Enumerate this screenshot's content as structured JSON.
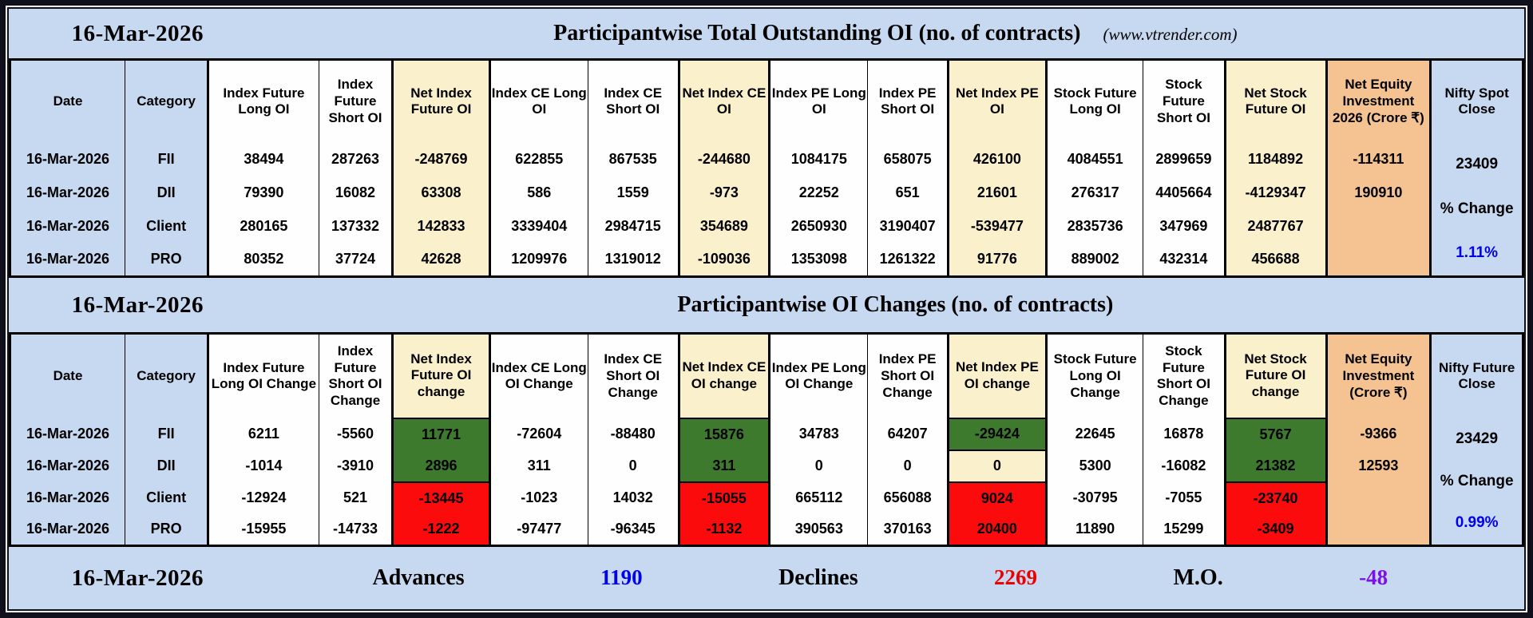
{
  "palette": {
    "frame": "#10101c",
    "band_blue": "#c6d9f1",
    "cell_white": "#fefefe",
    "cream": "#fbf0cc",
    "orange": "#f5c292",
    "green_bg": "#3e7a2e",
    "red_bg": "#fb0b0b",
    "red_text": "#ee0000",
    "blue_text": "#0000ee",
    "purple_text": "#7d0fe8",
    "white_text": "#fffef0",
    "black_text": "#000000"
  },
  "top_band": {
    "date": "16-Mar-2026",
    "title": "Participantwise Total Outstanding OI (no. of contracts)",
    "site": "(www.vtrender.com)"
  },
  "table1": {
    "columns": [
      {
        "label": "Date",
        "bg": "blue"
      },
      {
        "label": "Category",
        "bg": "blue"
      },
      {
        "label": "Index Future Long OI",
        "bg": "white"
      },
      {
        "label": "Index Future Short OI",
        "bg": "white"
      },
      {
        "label": "Net Index Future OI",
        "bg": "cream"
      },
      {
        "label": "Index CE Long OI",
        "bg": "white"
      },
      {
        "label": "Index CE Short OI",
        "bg": "white"
      },
      {
        "label": "Net Index CE OI",
        "bg": "cream"
      },
      {
        "label": "Index PE Long OI",
        "bg": "white"
      },
      {
        "label": "Index PE Short OI",
        "bg": "white"
      },
      {
        "label": "Net Index PE OI",
        "bg": "cream"
      },
      {
        "label": "Stock Future Long OI",
        "bg": "white"
      },
      {
        "label": "Stock Future Short OI",
        "bg": "white"
      },
      {
        "label": "Net Stock Future OI",
        "bg": "cream"
      },
      {
        "label": "Net Equity Investment 2026 (Crore ₹)",
        "bg": "orange"
      },
      {
        "label": "Nifty Spot Close",
        "bg": "blue"
      }
    ],
    "rows": [
      {
        "date": "16-Mar-2026",
        "category": "FII",
        "cells": [
          {
            "v": "38494"
          },
          {
            "v": "287263"
          },
          {
            "v": "-248769",
            "c": "r"
          },
          {
            "v": "622855"
          },
          {
            "v": "867535"
          },
          {
            "v": "-244680",
            "c": "r"
          },
          {
            "v": "1084175"
          },
          {
            "v": "658075"
          },
          {
            "v": "426100"
          },
          {
            "v": "4084551"
          },
          {
            "v": "2899659"
          },
          {
            "v": "1184892"
          },
          {
            "v": "-114311",
            "c": "r"
          }
        ]
      },
      {
        "date": "16-Mar-2026",
        "category": "DII",
        "cells": [
          {
            "v": "79390"
          },
          {
            "v": "16082"
          },
          {
            "v": "63308"
          },
          {
            "v": "586"
          },
          {
            "v": "1559"
          },
          {
            "v": "-973",
            "c": "r"
          },
          {
            "v": "22252"
          },
          {
            "v": "651"
          },
          {
            "v": "21601"
          },
          {
            "v": "276317"
          },
          {
            "v": "4405664"
          },
          {
            "v": "-4129347",
            "c": "r"
          },
          {
            "v": "190910",
            "c": "b"
          }
        ]
      },
      {
        "date": "16-Mar-2026",
        "category": "Client",
        "cells": [
          {
            "v": "280165"
          },
          {
            "v": "137332"
          },
          {
            "v": "142833"
          },
          {
            "v": "3339404"
          },
          {
            "v": "2984715"
          },
          {
            "v": "354689"
          },
          {
            "v": "2650930"
          },
          {
            "v": "3190407"
          },
          {
            "v": "-539477",
            "c": "r"
          },
          {
            "v": "2835736"
          },
          {
            "v": "347969"
          },
          {
            "v": "2487767"
          },
          {
            "v": ""
          }
        ]
      },
      {
        "date": "16-Mar-2026",
        "category": "PRO",
        "cells": [
          {
            "v": "80352"
          },
          {
            "v": "37724"
          },
          {
            "v": "42628"
          },
          {
            "v": "1209976"
          },
          {
            "v": "1319012"
          },
          {
            "v": "-109036",
            "c": "r"
          },
          {
            "v": "1353098"
          },
          {
            "v": "1261322"
          },
          {
            "v": "91776"
          },
          {
            "v": "889002"
          },
          {
            "v": "432314"
          },
          {
            "v": "456688"
          },
          {
            "v": ""
          }
        ]
      }
    ],
    "spot": {
      "value": "23409",
      "pct_label": "% Change",
      "pct_value": "1.11%"
    }
  },
  "band2": {
    "date": "16-Mar-2026",
    "title": "Participantwise OI Changes (no. of contracts)"
  },
  "table2": {
    "columns": [
      {
        "label": "Date",
        "bg": "blue"
      },
      {
        "label": "Category",
        "bg": "blue"
      },
      {
        "label": "Index Future Long OI Change",
        "bg": "white"
      },
      {
        "label": "Index Future Short OI Change",
        "bg": "white"
      },
      {
        "label": "Net Index Future OI change",
        "bg": "cream"
      },
      {
        "label": "Index CE Long OI Change",
        "bg": "white"
      },
      {
        "label": "Index CE Short OI Change",
        "bg": "white"
      },
      {
        "label": "Net Index CE OI change",
        "bg": "cream"
      },
      {
        "label": "Index PE Long OI Change",
        "bg": "white"
      },
      {
        "label": "Index PE Short OI Change",
        "bg": "white"
      },
      {
        "label": "Net Index PE OI change",
        "bg": "cream"
      },
      {
        "label": "Stock Future Long OI Change",
        "bg": "white"
      },
      {
        "label": "Stock Future Short OI Change",
        "bg": "white"
      },
      {
        "label": "Net Stock Future OI change",
        "bg": "cream"
      },
      {
        "label": "Net Equity Investment (Crore ₹)",
        "bg": "orange"
      },
      {
        "label": "Nifty Future Close",
        "bg": "blue"
      }
    ],
    "rows": [
      {
        "date": "16-Mar-2026",
        "category": "FII",
        "cells": [
          {
            "v": "6211",
            "c": "b"
          },
          {
            "v": "-5560",
            "c": "r"
          },
          {
            "v": "11771",
            "c": "w",
            "bg": "green"
          },
          {
            "v": "-72604",
            "c": "r"
          },
          {
            "v": "-88480",
            "c": "r"
          },
          {
            "v": "15876",
            "c": "w",
            "bg": "green"
          },
          {
            "v": "34783",
            "c": "b"
          },
          {
            "v": "64207",
            "c": "b"
          },
          {
            "v": "-29424",
            "c": "w",
            "bg": "green"
          },
          {
            "v": "22645",
            "c": "b"
          },
          {
            "v": "16878",
            "c": "b"
          },
          {
            "v": "5767",
            "c": "w",
            "bg": "green"
          },
          {
            "v": "-9366",
            "c": "r"
          }
        ]
      },
      {
        "date": "16-Mar-2026",
        "category": "DII",
        "cells": [
          {
            "v": "-1014",
            "c": "r"
          },
          {
            "v": "-3910",
            "c": "r"
          },
          {
            "v": "2896",
            "c": "w",
            "bg": "green"
          },
          {
            "v": "311",
            "c": "b"
          },
          {
            "v": "0"
          },
          {
            "v": "311",
            "c": "w",
            "bg": "green"
          },
          {
            "v": "0"
          },
          {
            "v": "0"
          },
          {
            "v": "0",
            "bg": "cream"
          },
          {
            "v": "5300",
            "c": "b"
          },
          {
            "v": "-16082",
            "c": "r"
          },
          {
            "v": "21382",
            "c": "w",
            "bg": "green"
          },
          {
            "v": "12593",
            "c": "b"
          }
        ]
      },
      {
        "date": "16-Mar-2026",
        "category": "Client",
        "cells": [
          {
            "v": "-12924",
            "c": "r"
          },
          {
            "v": "521",
            "c": "b"
          },
          {
            "v": "-13445",
            "c": "w",
            "bg": "red"
          },
          {
            "v": "-1023",
            "c": "r"
          },
          {
            "v": "14032",
            "c": "b"
          },
          {
            "v": "-15055",
            "c": "w",
            "bg": "red"
          },
          {
            "v": "665112",
            "c": "b"
          },
          {
            "v": "656088",
            "c": "b"
          },
          {
            "v": "9024",
            "c": "w",
            "bg": "red"
          },
          {
            "v": "-30795",
            "c": "r"
          },
          {
            "v": "-7055",
            "c": "r"
          },
          {
            "v": "-23740",
            "c": "w",
            "bg": "red"
          },
          {
            "v": ""
          }
        ]
      },
      {
        "date": "16-Mar-2026",
        "category": "PRO",
        "cells": [
          {
            "v": "-15955",
            "c": "r"
          },
          {
            "v": "-14733",
            "c": "r"
          },
          {
            "v": "-1222",
            "c": "w",
            "bg": "red"
          },
          {
            "v": "-97477",
            "c": "r"
          },
          {
            "v": "-96345",
            "c": "r"
          },
          {
            "v": "-1132",
            "c": "w",
            "bg": "red"
          },
          {
            "v": "390563",
            "c": "b"
          },
          {
            "v": "370163",
            "c": "b"
          },
          {
            "v": "20400",
            "c": "w",
            "bg": "red"
          },
          {
            "v": "11890",
            "c": "b"
          },
          {
            "v": "15299",
            "c": "b"
          },
          {
            "v": "-3409",
            "c": "w",
            "bg": "red"
          },
          {
            "v": ""
          }
        ]
      }
    ],
    "spot": {
      "value": "23429",
      "pct_label": "% Change",
      "pct_value": "0.99%"
    }
  },
  "footer": {
    "date": "16-Mar-2026",
    "advances_label": "Advances",
    "advances_value": "1190",
    "declines_label": "Declines",
    "declines_value": "2269",
    "mo_label": "M.O.",
    "mo_value": "-48"
  }
}
